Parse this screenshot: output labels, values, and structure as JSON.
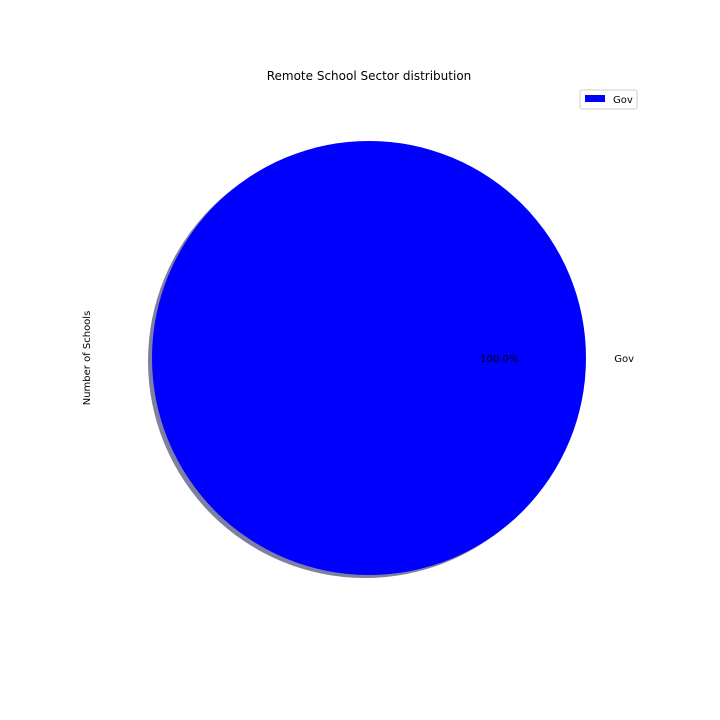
{
  "chart_data": {
    "type": "pie",
    "title": "Remote School Sector distribution",
    "ylabel": "Number of Schools",
    "slices": [
      {
        "label": "Gov",
        "percent_label": "100.0%",
        "value": 100.0,
        "color": "#0000ff"
      }
    ],
    "legend": {
      "placement": "top-right",
      "entries": [
        "Gov"
      ]
    },
    "shadow": true,
    "shadow_color": "#7f7f9f"
  }
}
